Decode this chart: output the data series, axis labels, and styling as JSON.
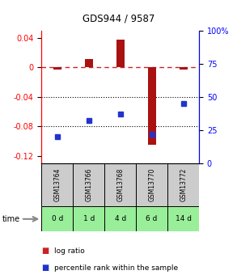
{
  "title": "GDS944 / 9587",
  "samples": [
    "GSM13764",
    "GSM13766",
    "GSM13768",
    "GSM13770",
    "GSM13772"
  ],
  "time_labels": [
    "0 d",
    "1 d",
    "4 d",
    "6 d",
    "14 d"
  ],
  "log_ratio": [
    -0.003,
    0.012,
    0.038,
    -0.105,
    -0.003
  ],
  "percentile_rank": [
    20,
    32,
    37,
    22,
    45
  ],
  "ylim_left": [
    -0.13,
    0.05
  ],
  "ylim_right": [
    0,
    100
  ],
  "yticks_left": [
    0.04,
    0.0,
    -0.04,
    -0.08,
    -0.12
  ],
  "yticks_right": [
    100,
    75,
    50,
    25,
    0
  ],
  "bar_color": "#aa1111",
  "dot_color": "#2233cc",
  "dashed_color": "#cc2222",
  "gsm_bg": "#cccccc",
  "time_bg": "#99ee99",
  "legend_bar_color": "#cc2222",
  "legend_dot_color": "#2233cc",
  "legend_label_bar": "log ratio",
  "legend_label_dot": "percentile rank within the sample"
}
